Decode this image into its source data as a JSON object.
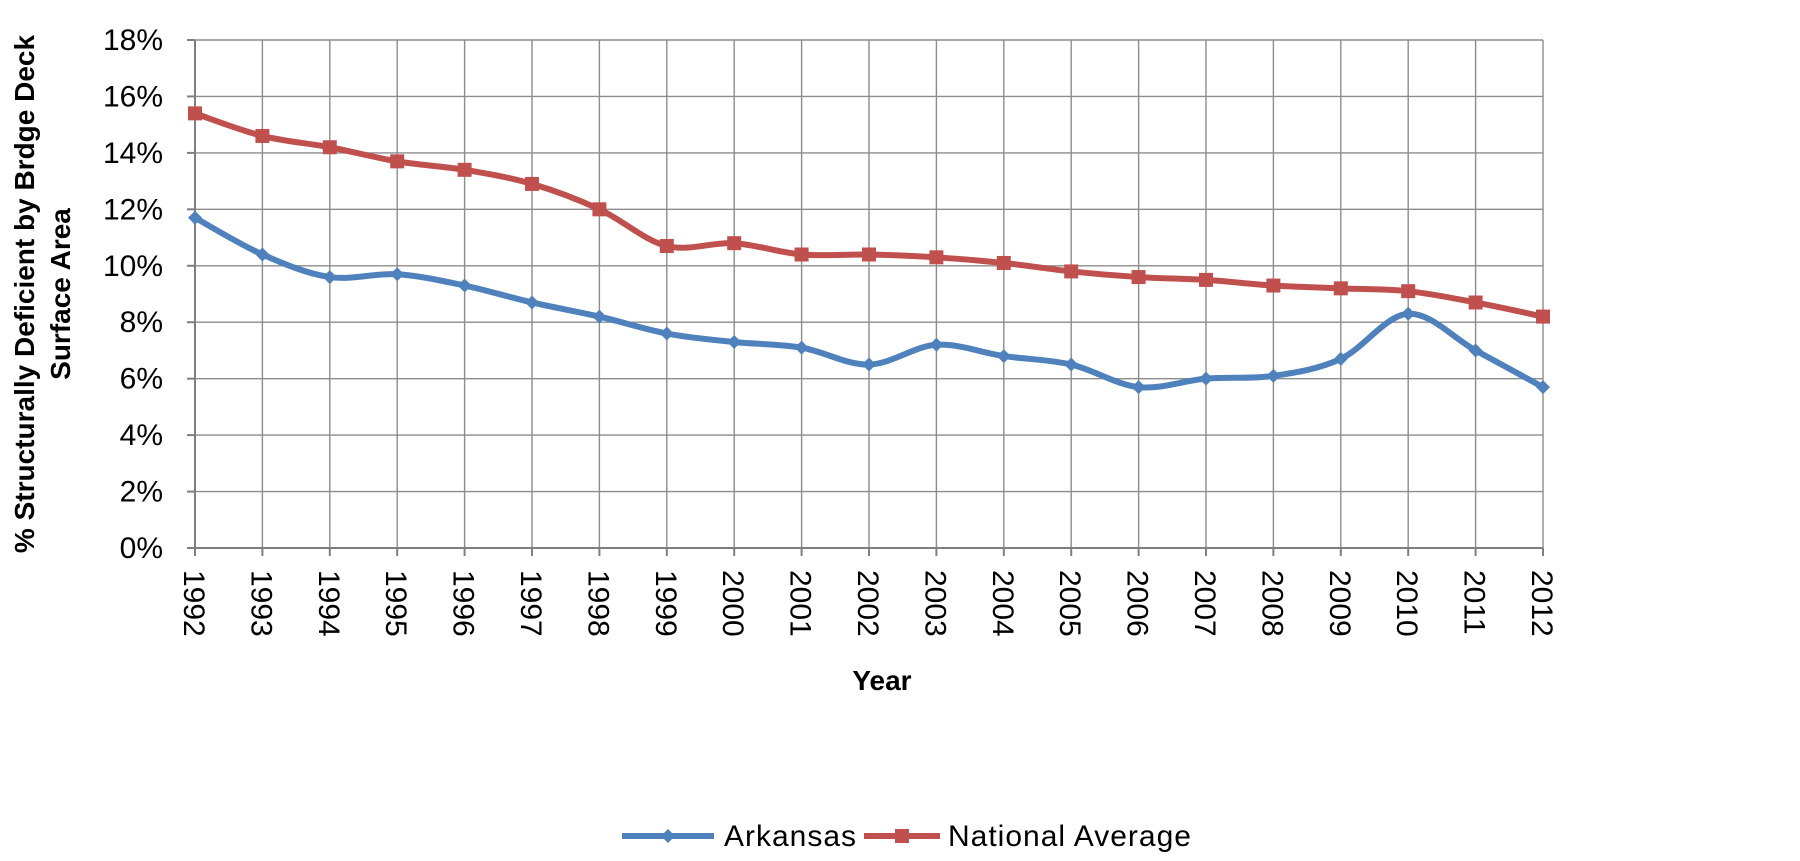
{
  "chart_data": {
    "type": "line",
    "title": "",
    "xlabel": "Year",
    "ylabel": "% Structurally Deficient by Brdge Deck Surface Area",
    "ylabel_lines": [
      "% Structurally Deficient by Brdge Deck",
      "Surface Area"
    ],
    "x": [
      "1992",
      "1993",
      "1994",
      "1995",
      "1996",
      "1997",
      "1998",
      "1999",
      "2000",
      "2001",
      "2002",
      "2003",
      "2004",
      "2005",
      "2006",
      "2007",
      "2008",
      "2009",
      "2010",
      "2011",
      "2012"
    ],
    "ylim": [
      0,
      18
    ],
    "yticks": [
      0,
      2,
      4,
      6,
      8,
      10,
      12,
      14,
      16,
      18
    ],
    "ytick_labels": [
      "0%",
      "2%",
      "4%",
      "6%",
      "8%",
      "10%",
      "12%",
      "14%",
      "16%",
      "18%"
    ],
    "grid": true,
    "legend_position": "bottom",
    "series": [
      {
        "name": "Arkansas",
        "color": "#4f81bd",
        "marker": "diamond",
        "values": [
          11.7,
          10.4,
          9.6,
          9.7,
          9.3,
          8.7,
          8.2,
          7.6,
          7.3,
          7.1,
          6.5,
          7.2,
          6.8,
          6.5,
          5.7,
          6.0,
          6.1,
          6.7,
          8.3,
          7.0,
          5.7
        ]
      },
      {
        "name": "National Average",
        "color": "#c0504d",
        "marker": "square",
        "values": [
          15.4,
          14.6,
          14.2,
          13.7,
          13.4,
          12.9,
          12.0,
          10.7,
          10.8,
          10.4,
          10.4,
          10.3,
          10.1,
          9.8,
          9.6,
          9.5,
          9.3,
          9.2,
          9.1,
          8.7,
          8.2
        ]
      }
    ]
  }
}
